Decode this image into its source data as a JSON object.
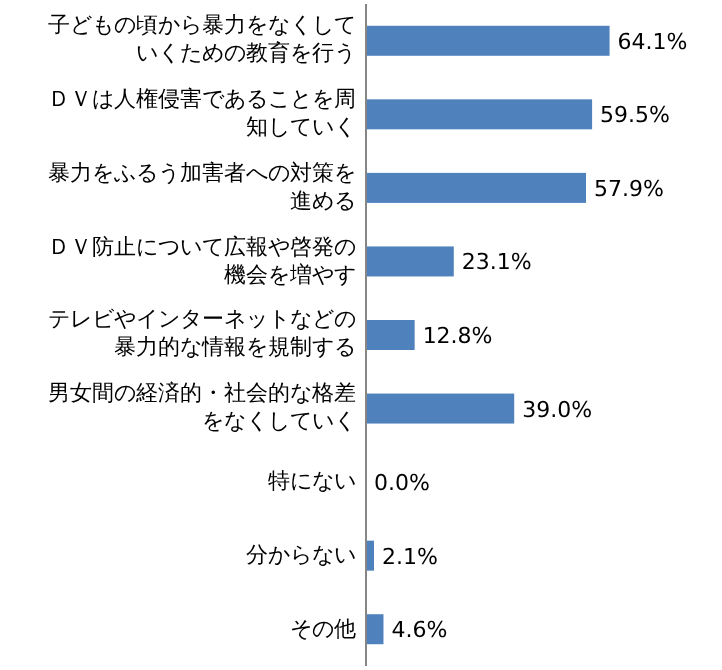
{
  "chart_data": {
    "type": "bar",
    "orientation": "horizontal",
    "categories": [
      "子どもの頃から暴力をなくしていくための教育を行う",
      "ＤＶは人権侵害であることを周知していく",
      "暴力をふるう加害者への対策を進める",
      "ＤＶ防止について広報や啓発の機会を増やす",
      "テレビやインターネットなどの暴力的な情報を規制する",
      "男女間の経済的・社会的な格差をなくしていく",
      "特にない",
      "分からない",
      "その他"
    ],
    "values": [
      64.1,
      59.5,
      57.9,
      23.1,
      12.8,
      39.0,
      0.0,
      2.1,
      4.6
    ],
    "value_labels": [
      "64.1%",
      "59.5%",
      "57.9%",
      "23.1%",
      "12.8%",
      "39.0%",
      "0.0%",
      "2.1%",
      "4.6%"
    ],
    "color": "#4f81bd"
  }
}
